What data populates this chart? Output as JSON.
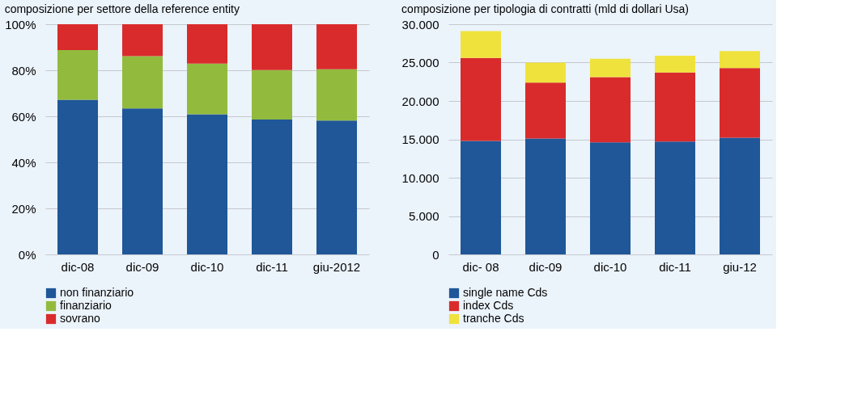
{
  "chart_data": [
    {
      "type": "bar",
      "title": "composizione per settore della reference entity",
      "stacked": true,
      "categories": [
        "dic-08",
        "dic-09",
        "dic-10",
        "dic-11",
        "giu-2012"
      ],
      "series": [
        {
          "name": "non finanziario",
          "color": "#1f5798",
          "values": [
            67.2,
            63.4,
            60.9,
            58.6,
            58.2
          ]
        },
        {
          "name": "finanziario",
          "color": "#92bb3e",
          "values": [
            21.6,
            22.7,
            22.0,
            21.5,
            22.2
          ]
        },
        {
          "name": "sovrano",
          "color": "#d92b2c",
          "values": [
            11.2,
            13.9,
            17.1,
            19.9,
            19.6
          ]
        }
      ],
      "ylim": [
        0,
        100
      ],
      "yticks": [
        {
          "value": 0,
          "label": "0%"
        },
        {
          "value": 20,
          "label": "20%"
        },
        {
          "value": 40,
          "label": "40%"
        },
        {
          "value": 60,
          "label": "60%"
        },
        {
          "value": 80,
          "label": "80%"
        },
        {
          "value": 100,
          "label": "100%"
        }
      ],
      "grid": "y",
      "legend": "bottom left"
    },
    {
      "type": "bar",
      "title": "composizione per tipologia di contratti (mld di dollari Usa)",
      "stacked": true,
      "categories": [
        "dic- 08",
        "dic-09",
        "dic-10",
        "dic-11",
        "giu-12"
      ],
      "series": [
        {
          "name": "single name Cds",
          "color": "#1f5798",
          "values": [
            14800,
            15100,
            14600,
            14700,
            15200
          ]
        },
        {
          "name": "index Cds",
          "color": "#d92b2c",
          "values": [
            10800,
            7300,
            8500,
            9000,
            9100
          ]
        },
        {
          "name": "tranche Cds",
          "color": "#f0e23c",
          "values": [
            3500,
            2600,
            2400,
            2200,
            2200
          ]
        }
      ],
      "ylim": [
        0,
        30000
      ],
      "yticks": [
        0,
        {
          "value": 5000,
          "label": "5.000"
        },
        {
          "value": 10000,
          "label": "10.000"
        },
        {
          "value": 15000,
          "label": "15.000"
        },
        {
          "value": 20000,
          "label": "20.000"
        },
        {
          "value": 25000,
          "label": "25.000"
        },
        {
          "value": 30000,
          "label": "30.000"
        }
      ],
      "grid": "y",
      "legend": "bottom left"
    }
  ]
}
